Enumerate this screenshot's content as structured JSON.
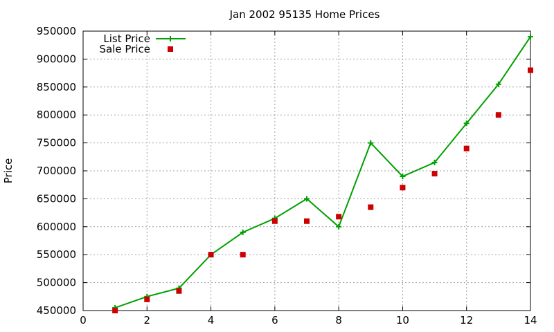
{
  "chart_data": {
    "type": "line",
    "title": "Jan 2002 95135 Home Prices",
    "xlabel": "",
    "ylabel": "Price",
    "xlim": [
      0,
      14
    ],
    "ylim": [
      450000,
      950000
    ],
    "x_ticks": [
      "0",
      "2",
      "4",
      "6",
      "8",
      "10",
      "12",
      "14"
    ],
    "y_ticks": [
      "450000",
      "500000",
      "550000",
      "600000",
      "650000",
      "700000",
      "750000",
      "800000",
      "850000",
      "900000",
      "950000"
    ],
    "grid": true,
    "legend": "top-left",
    "series": [
      {
        "name": "List Price",
        "style": "lines+crosses",
        "color": "#00a000",
        "x": [
          1,
          2,
          3,
          4,
          5,
          6,
          7,
          8,
          9,
          10,
          11,
          12,
          13,
          14
        ],
        "y": [
          455000,
          475000,
          490000,
          550000,
          590000,
          615000,
          650000,
          600000,
          750000,
          690000,
          715000,
          785000,
          855000,
          940000
        ]
      },
      {
        "name": "Sale Price",
        "style": "squares",
        "color": "#cc0000",
        "x": [
          1,
          2,
          3,
          4,
          5,
          6,
          7,
          8,
          9,
          10,
          11,
          12,
          13,
          14
        ],
        "y": [
          450000,
          470000,
          485000,
          550000,
          550000,
          610000,
          610000,
          618000,
          635000,
          670000,
          695000,
          740000,
          800000,
          880000
        ]
      }
    ]
  }
}
